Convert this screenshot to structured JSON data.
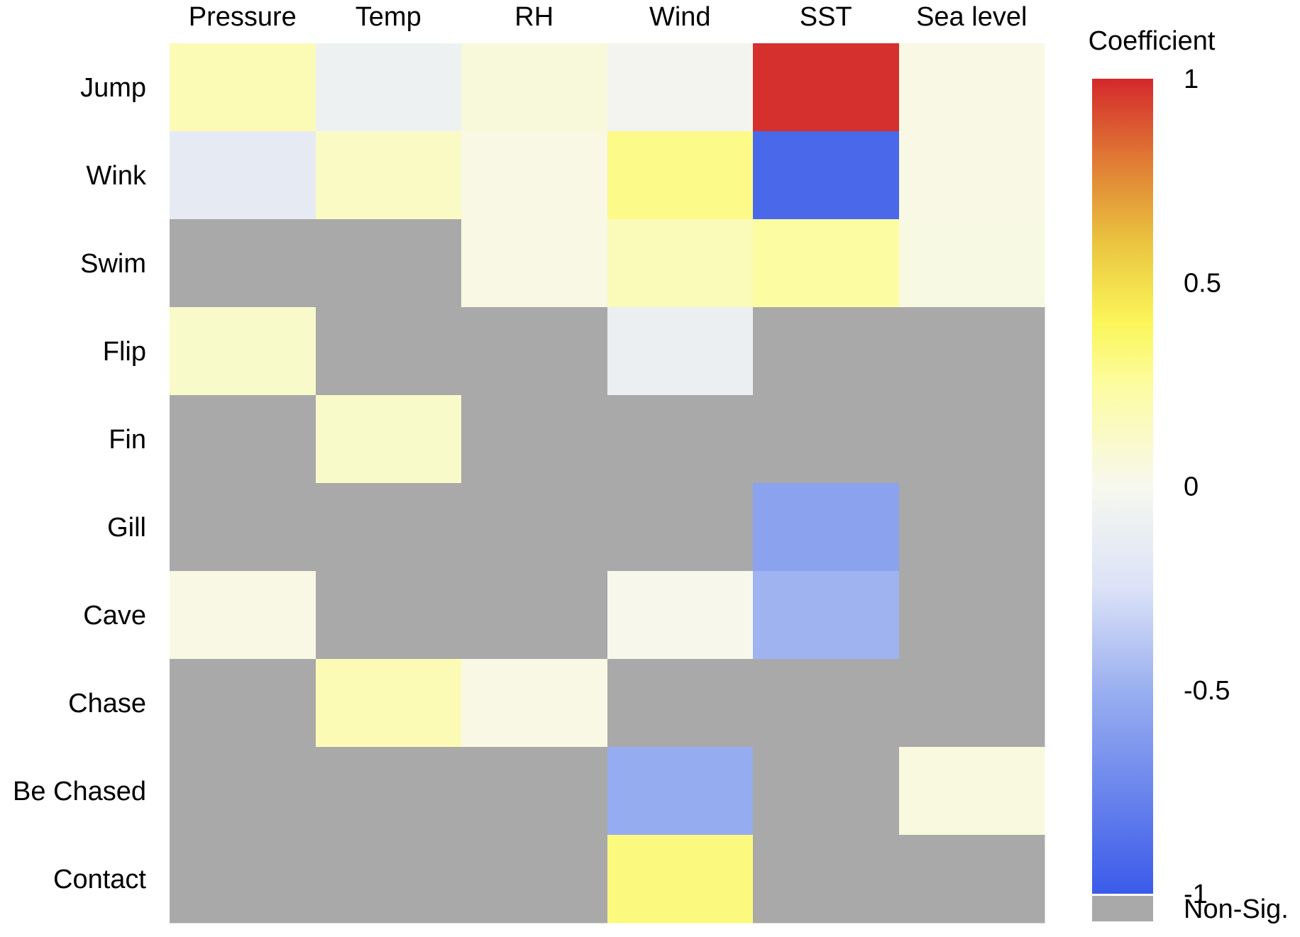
{
  "chart_data": {
    "type": "heatmap",
    "title": "",
    "xlabel": "",
    "ylabel": "",
    "columns": [
      "Pressure",
      "Temp",
      "RH",
      "Wind",
      "SST",
      "Sea level"
    ],
    "rows": [
      "Jump",
      "Wink",
      "Swim",
      "Flip",
      "Fin",
      "Gill",
      "Cave",
      "Chase",
      "Be Chased",
      "Contact"
    ],
    "values": [
      [
        0.18,
        -0.08,
        0.06,
        -0.04,
        0.98,
        0.03
      ],
      [
        -0.15,
        0.13,
        0.03,
        0.3,
        -0.92,
        0.03
      ],
      [
        null,
        null,
        0.03,
        0.17,
        0.24,
        0.04
      ],
      [
        0.12,
        null,
        null,
        -0.1,
        null,
        null
      ],
      [
        null,
        0.12,
        null,
        null,
        null,
        null
      ],
      [
        null,
        null,
        null,
        null,
        -0.58,
        null
      ],
      [
        0.03,
        null,
        null,
        0.01,
        -0.48,
        null
      ],
      [
        null,
        0.18,
        0.03,
        null,
        null,
        null
      ],
      [
        null,
        null,
        null,
        -0.52,
        null,
        0.05
      ],
      [
        null,
        null,
        null,
        0.32,
        null,
        null
      ]
    ],
    "legend": {
      "title": "Coefficient",
      "range": [
        -1,
        1
      ],
      "ticks": [
        1,
        0.5,
        0,
        -0.5,
        -1
      ],
      "tick_labels": [
        "1",
        "0.5",
        "0",
        "-0.5",
        "-1"
      ],
      "non_sig_label": "Non-Sig.",
      "non_sig_color": "#a9a9a9",
      "placement": "right"
    },
    "colorscale": [
      {
        "v": -1.0,
        "color": "#3a5be9"
      },
      {
        "v": -0.5,
        "color": "#9aaff0"
      },
      {
        "v": -0.25,
        "color": "#dbe2f7"
      },
      {
        "v": 0.0,
        "color": "#f7f8ee"
      },
      {
        "v": 0.25,
        "color": "#fcfca0"
      },
      {
        "v": 0.4,
        "color": "#fbf65a"
      },
      {
        "v": 0.6,
        "color": "#eac43f"
      },
      {
        "v": 0.8,
        "color": "#e07b35"
      },
      {
        "v": 1.0,
        "color": "#d4282c"
      }
    ]
  }
}
